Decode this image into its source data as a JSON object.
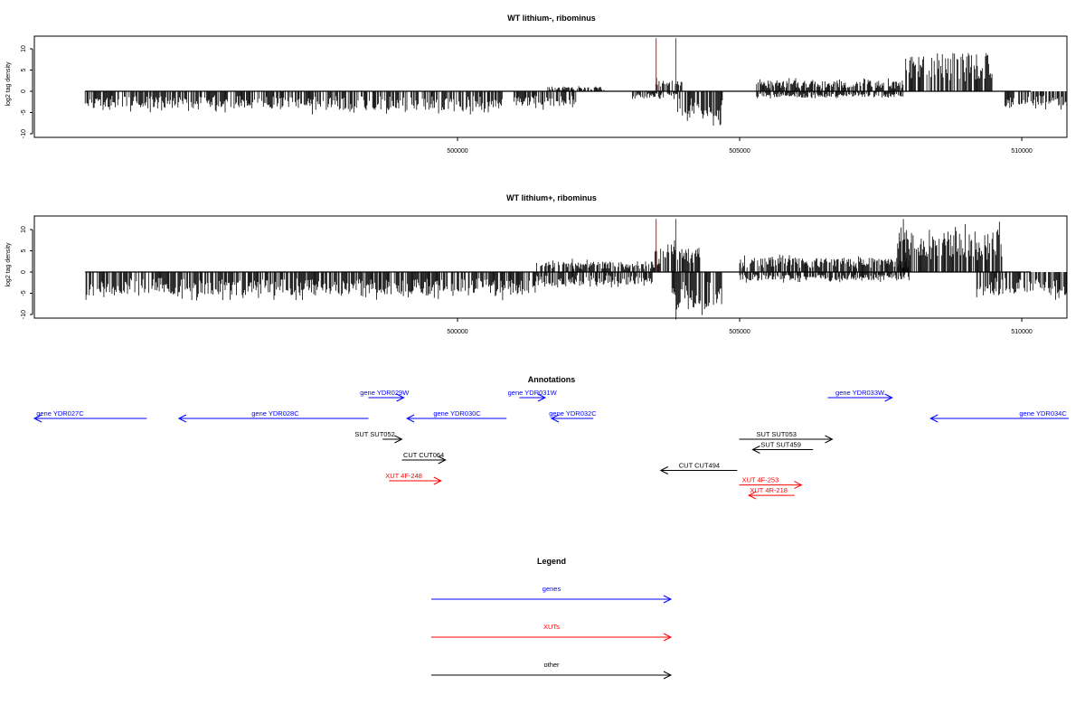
{
  "colors": {
    "genes": "#0000ff",
    "xuts": "#ff0000",
    "other": "#000000",
    "signal": "#000000",
    "highlight": "#ff0000"
  },
  "chart_data": [
    {
      "type": "bar",
      "title": "WT lithium-, ribominus",
      "ylabel": "log2 tag density",
      "ylim": [
        -10,
        13
      ],
      "xlim": [
        492500,
        510800
      ],
      "yticks": [
        10,
        5,
        0,
        -5,
        -10
      ],
      "xticks": [
        500000,
        505000,
        510000
      ],
      "xtick_labels": [
        "500000",
        "505000",
        "510000"
      ],
      "segments": [
        {
          "start": 493400,
          "end": 497300,
          "sign": -1,
          "max": 4.0
        },
        {
          "start": 497300,
          "end": 500800,
          "sign": -1,
          "max": 4.5
        },
        {
          "start": 501000,
          "end": 502100,
          "sign": -1,
          "max": 3.5
        },
        {
          "start": 501600,
          "end": 502600,
          "sign": 1,
          "max": 1.0
        },
        {
          "start": 503100,
          "end": 503900,
          "sign": -1,
          "max": 1.5
        },
        {
          "start": 503900,
          "end": 504700,
          "sign": -1,
          "max": 6.5
        },
        {
          "start": 503500,
          "end": 504000,
          "sign": 1,
          "max": 2.5
        },
        {
          "start": 505300,
          "end": 507900,
          "sign": 1,
          "max": 2.5
        },
        {
          "start": 505300,
          "end": 507900,
          "sign": -1,
          "max": 1.5
        },
        {
          "start": 507900,
          "end": 509500,
          "sign": 1,
          "max": 9.0
        },
        {
          "start": 509700,
          "end": 510800,
          "sign": -1,
          "max": 3.5
        }
      ],
      "peaks": [
        {
          "x": 503520,
          "y": 12.5
        },
        {
          "x": 503870,
          "y": 12.5
        }
      ]
    },
    {
      "type": "bar",
      "title": "WT lithium+, ribominus",
      "ylabel": "log2 tag density",
      "ylim": [
        -10,
        13
      ],
      "xlim": [
        492500,
        510800
      ],
      "yticks": [
        10,
        5,
        0,
        -5,
        -10
      ],
      "xticks": [
        500000,
        505000,
        510000
      ],
      "xtick_labels": [
        "500000",
        "505000",
        "510000"
      ],
      "segments": [
        {
          "start": 493400,
          "end": 501400,
          "sign": -1,
          "max": 5.5
        },
        {
          "start": 501400,
          "end": 503500,
          "sign": 1,
          "max": 2.5
        },
        {
          "start": 501400,
          "end": 503500,
          "sign": -1,
          "max": 3.0
        },
        {
          "start": 503500,
          "end": 504300,
          "sign": 1,
          "max": 6.0
        },
        {
          "start": 503800,
          "end": 504700,
          "sign": -1,
          "max": 9.0
        },
        {
          "start": 505000,
          "end": 508000,
          "sign": 1,
          "max": 3.5
        },
        {
          "start": 505000,
          "end": 508000,
          "sign": -1,
          "max": 2.0
        },
        {
          "start": 507800,
          "end": 509700,
          "sign": 1,
          "max": 10.0
        },
        {
          "start": 509200,
          "end": 510800,
          "sign": -1,
          "max": 5.5
        }
      ],
      "peaks": [
        {
          "x": 503520,
          "y": 12.5
        },
        {
          "x": 503870,
          "y": 12.5
        }
      ]
    }
  ],
  "annotations": {
    "title": "Annotations",
    "items": [
      {
        "label": "gene YDR027C",
        "kind": "genes",
        "start": 492500,
        "end": 494250,
        "row": 0,
        "dir": -1,
        "label_x": 492900,
        "label_above": true
      },
      {
        "label": "gene YDR028C",
        "kind": "genes",
        "start": 494750,
        "end": 497700,
        "row": 0,
        "dir": -1,
        "label_x": 496250,
        "label_above": true
      },
      {
        "label": "gene YDR029W",
        "kind": "genes",
        "start": 497700,
        "end": 498250,
        "row": -1,
        "dir": 1,
        "label_x": 497950,
        "label_above": true
      },
      {
        "label": "gene YDR030C",
        "kind": "genes",
        "start": 498300,
        "end": 499850,
        "row": 0,
        "dir": -1,
        "label_x": 499080,
        "label_above": true
      },
      {
        "label": "gene YDR031W",
        "kind": "genes",
        "start": 500050,
        "end": 500450,
        "row": -1,
        "dir": 1,
        "label_x": 500250,
        "label_above": true
      },
      {
        "label": "gene YDR032C",
        "kind": "genes",
        "start": 500550,
        "end": 501200,
        "row": 0,
        "dir": -1,
        "label_x": 500880,
        "label_above": true
      },
      {
        "label": "gene YDR033W",
        "kind": "genes",
        "start": 504850,
        "end": 505850,
        "row": -1,
        "dir": 1,
        "label_x": 505350,
        "label_above": true
      },
      {
        "label": "gene YDR034C",
        "kind": "genes",
        "start": 506450,
        "end": 508600,
        "row": 0,
        "dir": -1,
        "label_x": 508200,
        "label_above": true
      },
      {
        "label": "SUT SUT052",
        "kind": "other",
        "start": 497920,
        "end": 498220,
        "row": 1,
        "dir": 1,
        "label_x": 497800,
        "label_above": true
      },
      {
        "label": "CUT CUT064",
        "kind": "other",
        "start": 498220,
        "end": 498900,
        "row": 2,
        "dir": 1,
        "label_x": 498560,
        "label_above": true
      },
      {
        "label": "XUT 4F-248",
        "kind": "xuts",
        "start": 498020,
        "end": 498830,
        "row": 3,
        "dir": 1,
        "label_x": 498250,
        "label_above": true
      },
      {
        "label": "SUT SUT053",
        "kind": "other",
        "start": 503470,
        "end": 504920,
        "row": 1,
        "dir": 1,
        "label_x": 504050,
        "label_above": true
      },
      {
        "label": "SUT SUT459",
        "kind": "other",
        "start": 503680,
        "end": 504620,
        "row": 1.5,
        "dir": -1,
        "label_x": 504120,
        "label_above": true
      },
      {
        "label": "CUT CUT494",
        "kind": "other",
        "start": 502250,
        "end": 503440,
        "row": 2.5,
        "dir": -1,
        "label_x": 502850,
        "label_above": true
      },
      {
        "label": "XUT 4F-253",
        "kind": "xuts",
        "start": 503470,
        "end": 504440,
        "row": 3.2,
        "dir": 1,
        "label_x": 503800,
        "label_above": true
      },
      {
        "label": "XUT 4R-218",
        "kind": "xuts",
        "start": 503620,
        "end": 504330,
        "row": 3.7,
        "dir": -1,
        "label_x": 503930,
        "label_above": true
      }
    ]
  },
  "legend": {
    "title": "Legend",
    "entries": [
      {
        "label": "genes",
        "kind": "genes"
      },
      {
        "label": "XUTs",
        "kind": "xuts"
      },
      {
        "label": "other",
        "kind": "other"
      }
    ]
  }
}
